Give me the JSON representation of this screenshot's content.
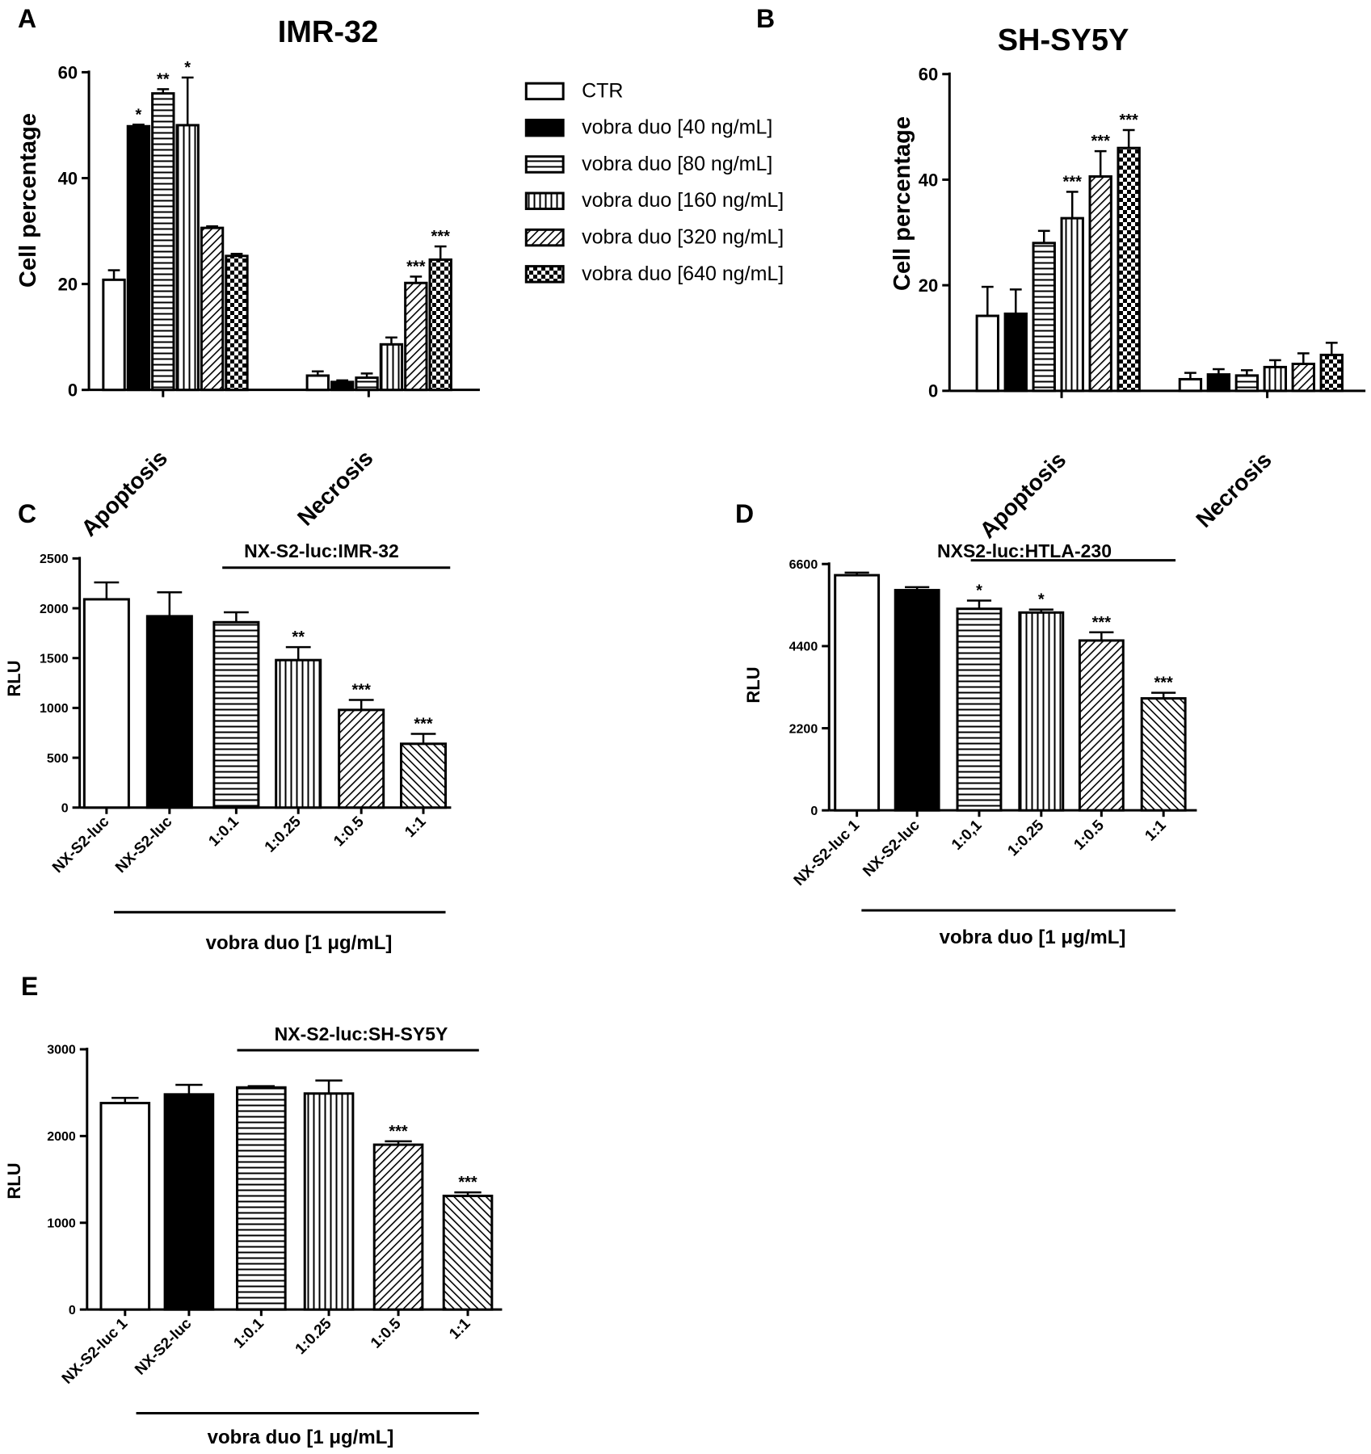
{
  "chart_data": [
    {
      "panel_letter": "A",
      "type": "bar",
      "title": "IMR-32",
      "ylabel": "Cell percentage",
      "ylim": [
        0,
        60
      ],
      "yticks": [
        0,
        20,
        40,
        60
      ],
      "categories": [
        "Apoptosis",
        "Necrosis"
      ],
      "series": [
        {
          "name": "CTR",
          "values": [
            20.8,
            2.7
          ],
          "errors": [
            1.8,
            0.8
          ],
          "sig": [
            "",
            ""
          ]
        },
        {
          "name": "vobra duo [40 ng/mL]",
          "values": [
            49.8,
            1.5
          ],
          "errors": [
            0.3,
            0.3
          ],
          "sig": [
            "*",
            ""
          ]
        },
        {
          "name": "vobra duo [80 ng/mL]",
          "values": [
            56.0,
            2.3
          ],
          "errors": [
            0.8,
            0.8
          ],
          "sig": [
            "**",
            ""
          ]
        },
        {
          "name": "vobra duo [160 ng/mL]",
          "values": [
            50.0,
            8.6
          ],
          "errors": [
            9.0,
            1.3
          ],
          "sig": [
            "*",
            ""
          ]
        },
        {
          "name": "vobra duo [320 ng/mL]",
          "values": [
            30.6,
            20.2
          ],
          "errors": [
            0.3,
            1.2
          ],
          "sig": [
            "",
            "***"
          ]
        },
        {
          "name": "vobra duo [640 ng/mL]",
          "values": [
            25.3,
            24.6
          ],
          "errors": [
            0.4,
            2.5
          ],
          "sig": [
            "",
            "***"
          ]
        }
      ]
    },
    {
      "panel_letter": "B",
      "type": "bar",
      "title": "SH-SY5Y",
      "ylabel": "Cell percentage",
      "ylim": [
        0,
        60
      ],
      "yticks": [
        0,
        20,
        40,
        60
      ],
      "categories": [
        "Apoptosis",
        "Necrosis"
      ],
      "series": [
        {
          "name": "CTR",
          "values": [
            14.2,
            2.2
          ],
          "errors": [
            5.5,
            1.2
          ],
          "sig": [
            "",
            ""
          ]
        },
        {
          "name": "vobra duo [40 ng/mL]",
          "values": [
            14.6,
            3.1
          ],
          "errors": [
            4.6,
            1.0
          ],
          "sig": [
            "",
            ""
          ]
        },
        {
          "name": "vobra duo [80 ng/mL]",
          "values": [
            28.0,
            2.9
          ],
          "errors": [
            2.3,
            1.0
          ],
          "sig": [
            "",
            ""
          ]
        },
        {
          "name": "vobra duo [160 ng/mL]",
          "values": [
            32.7,
            4.5
          ],
          "errors": [
            5.0,
            1.3
          ],
          "sig": [
            "***",
            ""
          ]
        },
        {
          "name": "vobra duo [320 ng/mL]",
          "values": [
            40.6,
            5.1
          ],
          "errors": [
            4.8,
            2.0
          ],
          "sig": [
            "***",
            ""
          ]
        },
        {
          "name": "vobra duo [640 ng/mL]",
          "values": [
            46.0,
            6.8
          ],
          "errors": [
            3.4,
            2.3
          ],
          "sig": [
            "***",
            ""
          ]
        }
      ]
    },
    {
      "panel_letter": "C",
      "type": "bar",
      "title": "",
      "ylabel": "RLU",
      "ylim": [
        0,
        2500
      ],
      "yticks": [
        0,
        500,
        1000,
        1500,
        2000,
        2500
      ],
      "categories": [
        "NX-S2-luc",
        "NX-S2-luc",
        "1:0.1",
        "1:0.25",
        "1:0.5",
        "1:1"
      ],
      "values": [
        2090,
        1920,
        1860,
        1480,
        980,
        640
      ],
      "errors": [
        170,
        240,
        100,
        130,
        100,
        100
      ],
      "sig": [
        "",
        "",
        "",
        "**",
        "***",
        "***"
      ],
      "top_bracket_label": "NX-S2-luc:IMR-32",
      "bottom_bracket_label": "vobra duo [1 μg/mL]"
    },
    {
      "panel_letter": "D",
      "type": "bar",
      "title": "",
      "ylabel": "RLU",
      "ylim": [
        0,
        6600
      ],
      "yticks": [
        0,
        2200,
        4400,
        6600
      ],
      "categories": [
        "NX-S2-luc 1",
        "NX-S2-luc",
        "1:0,1",
        "1:0.25",
        "1:0.5",
        "1:1"
      ],
      "values": [
        6300,
        5900,
        5400,
        5300,
        4550,
        3000
      ],
      "errors": [
        70,
        80,
        220,
        80,
        220,
        150
      ],
      "sig": [
        "",
        "",
        "*",
        "*",
        "***",
        "***"
      ],
      "top_bracket_label": "NXS2-luc:HTLA-230",
      "bottom_bracket_label": "vobra duo [1 μg/mL]"
    },
    {
      "panel_letter": "E",
      "type": "bar",
      "title": "",
      "ylabel": "RLU",
      "ylim": [
        0,
        3000
      ],
      "yticks": [
        0,
        1000,
        2000,
        3000
      ],
      "categories": [
        "NX-S2-luc 1",
        "NX-S2-luc",
        "1:0.1",
        "1:0.25",
        "1:0.5",
        "1:1"
      ],
      "values": [
        2380,
        2480,
        2560,
        2490,
        1900,
        1310
      ],
      "errors": [
        60,
        110,
        15,
        150,
        40,
        40
      ],
      "sig": [
        "",
        "",
        "",
        "",
        "***",
        "***"
      ],
      "top_bracket_label": "NX-S2-luc:SH-SY5Y",
      "bottom_bracket_label": "vobra duo [1 μg/mL]"
    }
  ],
  "colors": {
    "ink": "#000000",
    "paper": "#ffffff"
  },
  "fill_patterns": [
    "white",
    "solid-black",
    "horizontal-lines",
    "vertical-lines",
    "diagonal-lines",
    "checkerboard"
  ]
}
